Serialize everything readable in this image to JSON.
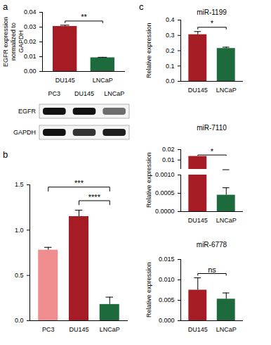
{
  "chart_data": [
    {
      "panel": "a",
      "type": "bar",
      "categories": [
        "DU145",
        "LNCaP"
      ],
      "values": [
        0.0305,
        0.0093
      ],
      "errors": [
        0.0008,
        0.0003
      ],
      "colors": [
        "#a51c24",
        "#1d6b3c"
      ],
      "ylabel": "EGFR expression normalized to GAPDH",
      "ylim": [
        0,
        0.04
      ],
      "yticks": [
        {
          "value": 0,
          "label": "0.00"
        },
        {
          "value": 0.01,
          "label": "0.01"
        },
        {
          "value": 0.02,
          "label": "0.02"
        },
        {
          "value": 0.03,
          "label": "0.03"
        },
        {
          "value": 0.04,
          "label": "0.04"
        }
      ],
      "annotations": [
        {
          "text": "**",
          "between": [
            "DU145",
            "LNCaP"
          ]
        }
      ]
    },
    {
      "panel": "b",
      "type": "bar",
      "categories": [
        "PC3",
        "DU145",
        "LNCaP"
      ],
      "values": [
        0.78,
        1.15,
        0.18
      ],
      "errors": [
        0.03,
        0.07,
        0.08
      ],
      "colors": [
        "#f08d8f",
        "#a51c24",
        "#1d6b3c"
      ],
      "ylim": [
        0,
        1.5
      ],
      "yticks": [
        {
          "value": 0,
          "label": "0.0"
        },
        {
          "value": 0.5,
          "label": "0.5"
        },
        {
          "value": 1,
          "label": "1.0"
        },
        {
          "value": 1.5,
          "label": "1.5"
        }
      ],
      "annotations": [
        {
          "text": "***",
          "between": [
            "PC3",
            "LNCaP"
          ]
        },
        {
          "text": "****",
          "between": [
            "DU145",
            "LNCaP"
          ]
        }
      ]
    },
    {
      "panel": "c",
      "type": "bar",
      "title": "miR-1199",
      "categories": [
        "DU145",
        "LNCaP"
      ],
      "values": [
        0.305,
        0.215
      ],
      "errors": [
        0.02,
        0.008
      ],
      "colors": [
        "#a51c24",
        "#1d6b3c"
      ],
      "ylabel": "Relative expression",
      "ylim": [
        0,
        0.4
      ],
      "yticks": [
        {
          "value": 0,
          "label": "0.0"
        },
        {
          "value": 0.1,
          "label": "0.1"
        },
        {
          "value": 0.2,
          "label": "0.2"
        },
        {
          "value": 0.3,
          "label": "0.3"
        },
        {
          "value": 0.4,
          "label": "0.4"
        }
      ],
      "annotations": [
        {
          "text": "*",
          "between": [
            "DU145",
            "LNCaP"
          ]
        }
      ]
    },
    {
      "type": "bar",
      "title": "miR-7110",
      "categories": [
        "DU145",
        "LNCaP"
      ],
      "values": [
        0.0135,
        0.00045
      ],
      "errors": [
        null,
        0.0002
      ],
      "colors": [
        "#a51c24",
        "#1d6b3c"
      ],
      "ylabel": "Relative expression",
      "ylim": [
        0,
        0.02
      ],
      "yticks": [
        {
          "value": 0,
          "label": "0.0000"
        },
        {
          "value": 0.0005,
          "label": "0.0005"
        },
        {
          "value": 0.001,
          "label": "0.0010"
        },
        {
          "value": 0.01,
          "label": "0.01"
        },
        {
          "value": 0.02,
          "label": "0.02"
        }
      ],
      "annotations": [
        {
          "text": "*",
          "between": [
            "DU145",
            "LNCaP"
          ]
        }
      ]
    },
    {
      "type": "bar",
      "title": "miR-6778",
      "categories": [
        "DU145",
        "LNCaP"
      ],
      "values": [
        0.0075,
        0.0053
      ],
      "errors": [
        0.003,
        0.0015
      ],
      "colors": [
        "#a51c24",
        "#1d6b3c"
      ],
      "ylabel": "Relative expression",
      "ylim": [
        0,
        0.015
      ],
      "yticks": [
        {
          "value": 0,
          "label": "0.000"
        },
        {
          "value": 0.005,
          "label": "0.005"
        },
        {
          "value": 0.01,
          "label": "0.010"
        },
        {
          "value": 0.015,
          "label": "0.015"
        }
      ],
      "annotations": [
        {
          "text": "ns",
          "between": [
            "DU145",
            "LNCaP"
          ]
        }
      ]
    }
  ],
  "blot": {
    "lanes": [
      "PC3",
      "DU145",
      "LNCaP"
    ],
    "rows": [
      {
        "label": "EGFR",
        "intensity": [
          1,
          1,
          0.6
        ]
      },
      {
        "label": "GAPDH",
        "intensity": [
          1,
          0.85,
          0.95
        ]
      }
    ]
  }
}
